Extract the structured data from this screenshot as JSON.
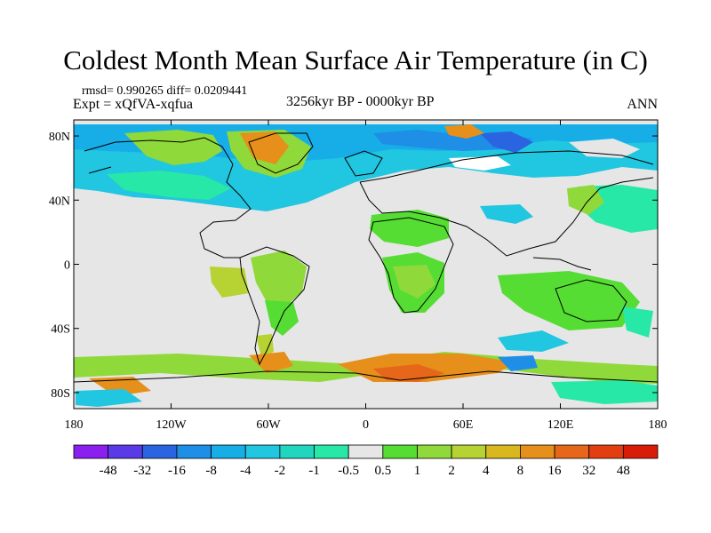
{
  "title": "Coldest Month Mean Surface Air Temperature (in C)",
  "stats": "rmsd= 0.990265  diff= 0.0209441",
  "experiment": "Expt = xQfVA-xqfua",
  "period": "3256kyr BP - 0000kyr BP",
  "season": "ANN",
  "axes": {
    "lat_ticks": [
      "80N",
      "40N",
      "0",
      "40S",
      "80S"
    ],
    "lat_values": [
      80,
      40,
      0,
      -40,
      -80
    ],
    "lon_ticks": [
      "180",
      "120W",
      "60W",
      "0",
      "60E",
      "120E",
      "180"
    ],
    "lon_values": [
      -180,
      -120,
      -60,
      0,
      60,
      120,
      180
    ],
    "lat_range": [
      -90,
      90
    ],
    "lon_range": [
      -180,
      180
    ]
  },
  "colorbar": {
    "labels": [
      "-48",
      "-32",
      "-16",
      "-8",
      "-4",
      "-2",
      "-1",
      "-0.5",
      "0.5",
      "1",
      "2",
      "4",
      "8",
      "16",
      "32",
      "48"
    ],
    "colors": [
      "#8a1ff0",
      "#5a3ae6",
      "#2a64e0",
      "#1e8ee6",
      "#17aee8",
      "#21c6e0",
      "#20d6bf",
      "#27e8a6",
      "#e6e6e6",
      "#55dd33",
      "#8fd93a",
      "#b7d233",
      "#d9b81f",
      "#e68f1a",
      "#e6661a",
      "#e33e12",
      "#d81c08"
    ]
  }
}
